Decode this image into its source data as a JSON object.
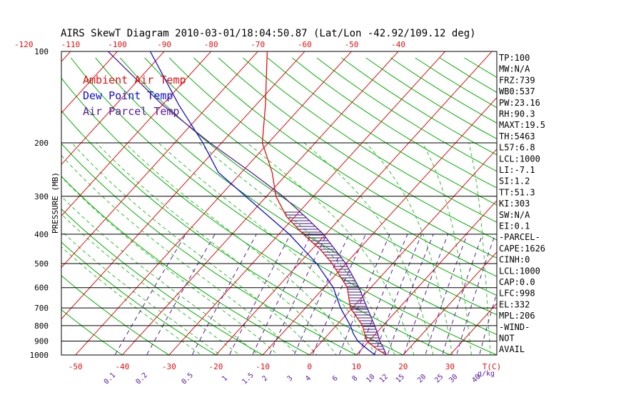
{
  "chart_data": {
    "type": "line",
    "title": "AIRS SkewT Diagram 2010-03-01/18:04:50.87 (Lat/Lon -42.92/109.12 deg)",
    "ylabel": "PRESSURE (MB)",
    "xlabel": "T(C)",
    "mixing_ratio_unit": "g/kg",
    "y_scale": "log",
    "ylim": [
      1000,
      100
    ],
    "xlim_bottom": [
      -53,
      40
    ],
    "pressure_ticks": [
      100,
      200,
      300,
      400,
      500,
      600,
      700,
      800,
      900,
      1000
    ],
    "temp_ticks_bottom": [
      -50,
      -40,
      -30,
      -20,
      -10,
      0,
      10,
      20,
      30
    ],
    "temp_ticks_top": [
      -120,
      -110,
      -100,
      -90,
      -80,
      -70,
      -60,
      -50,
      -40
    ],
    "mixing_ratio_labels": [
      "0.1",
      "0.2",
      "0.5",
      "1",
      "1.5",
      "2",
      "3",
      "4",
      "6",
      "8",
      "10",
      "12",
      "15",
      "20",
      "25",
      "30",
      "40"
    ],
    "legend": [
      {
        "label": "Ambient Air Temp",
        "color": "#e01010"
      },
      {
        "label": "Dew Point Temp",
        "color": "#1010d0"
      },
      {
        "label": "Air Parcel Temp",
        "color": "#5a1a9a"
      }
    ],
    "series": [
      {
        "name": "Ambient Air Temp",
        "color": "#e01010",
        "points": [
          [
            1000,
            16.4
          ],
          [
            950,
            12.8
          ],
          [
            900,
            9.6
          ],
          [
            850,
            7.6
          ],
          [
            800,
            5.6
          ],
          [
            700,
            -0.4
          ],
          [
            600,
            -5.0
          ],
          [
            500,
            -12.9
          ],
          [
            450,
            -18.1
          ],
          [
            400,
            -24.8
          ],
          [
            350,
            -31.8
          ],
          [
            300,
            -38.0
          ],
          [
            250,
            -43.5
          ],
          [
            200,
            -51.3
          ],
          [
            150,
            -58.0
          ],
          [
            100,
            -68.0
          ]
        ]
      },
      {
        "name": "Dew Point Temp",
        "color": "#1010d0",
        "points": [
          [
            1000,
            14.0
          ],
          [
            950,
            10.8
          ],
          [
            900,
            7.6
          ],
          [
            850,
            5.2
          ],
          [
            800,
            3.0
          ],
          [
            700,
            -2.5
          ],
          [
            600,
            -8.0
          ],
          [
            500,
            -16.2
          ],
          [
            400,
            -27.8
          ],
          [
            300,
            -44.5
          ],
          [
            250,
            -55.0
          ],
          [
            200,
            -64.0
          ],
          [
            150,
            -76.5
          ],
          [
            100,
            -93.0
          ]
        ]
      },
      {
        "name": "Air Parcel Temp",
        "color": "#5a1a9a",
        "points": [
          [
            1000,
            16.4
          ],
          [
            950,
            14.5
          ],
          [
            900,
            12.3
          ],
          [
            850,
            10.4
          ],
          [
            800,
            8.2
          ],
          [
            700,
            3.2
          ],
          [
            600,
            -2.5
          ],
          [
            500,
            -10.0
          ],
          [
            400,
            -20.5
          ],
          [
            350,
            -27.8
          ],
          [
            300,
            -36.5
          ],
          [
            250,
            -48.0
          ],
          [
            200,
            -62.5
          ],
          [
            150,
            -80.0
          ],
          [
            100,
            -102.0
          ]
        ]
      }
    ],
    "cape_shading": {
      "from": 998,
      "to": 332,
      "color": "#3a1a7a"
    },
    "background_lines": {
      "isotherms_color": "#e01010",
      "dry_adiabats_color": "#00b000",
      "moist_adiabats_color": "#30c030",
      "mixing_ratio_color": "#5a1a9a"
    }
  },
  "indices": [
    "TP:100",
    "MW:N/A",
    "FRZ:739",
    "WB0:537",
    "PW:23.16",
    "RH:90.3",
    "MAXT:19.5",
    "TH:5463",
    "L57:6.8",
    "LCL:1000",
    "LI:-7.1",
    "SI:1.2",
    "TT:51.3",
    "KI:303",
    "SW:N/A",
    "EI:0.1",
    "-PARCEL-",
    "CAPE:1626",
    "CINH:0",
    "LCL:1000",
    "CAP:0.0",
    "LFC:998",
    "EL:332",
    "MPL:206",
    "-WIND-",
    "NOT",
    "AVAIL"
  ]
}
